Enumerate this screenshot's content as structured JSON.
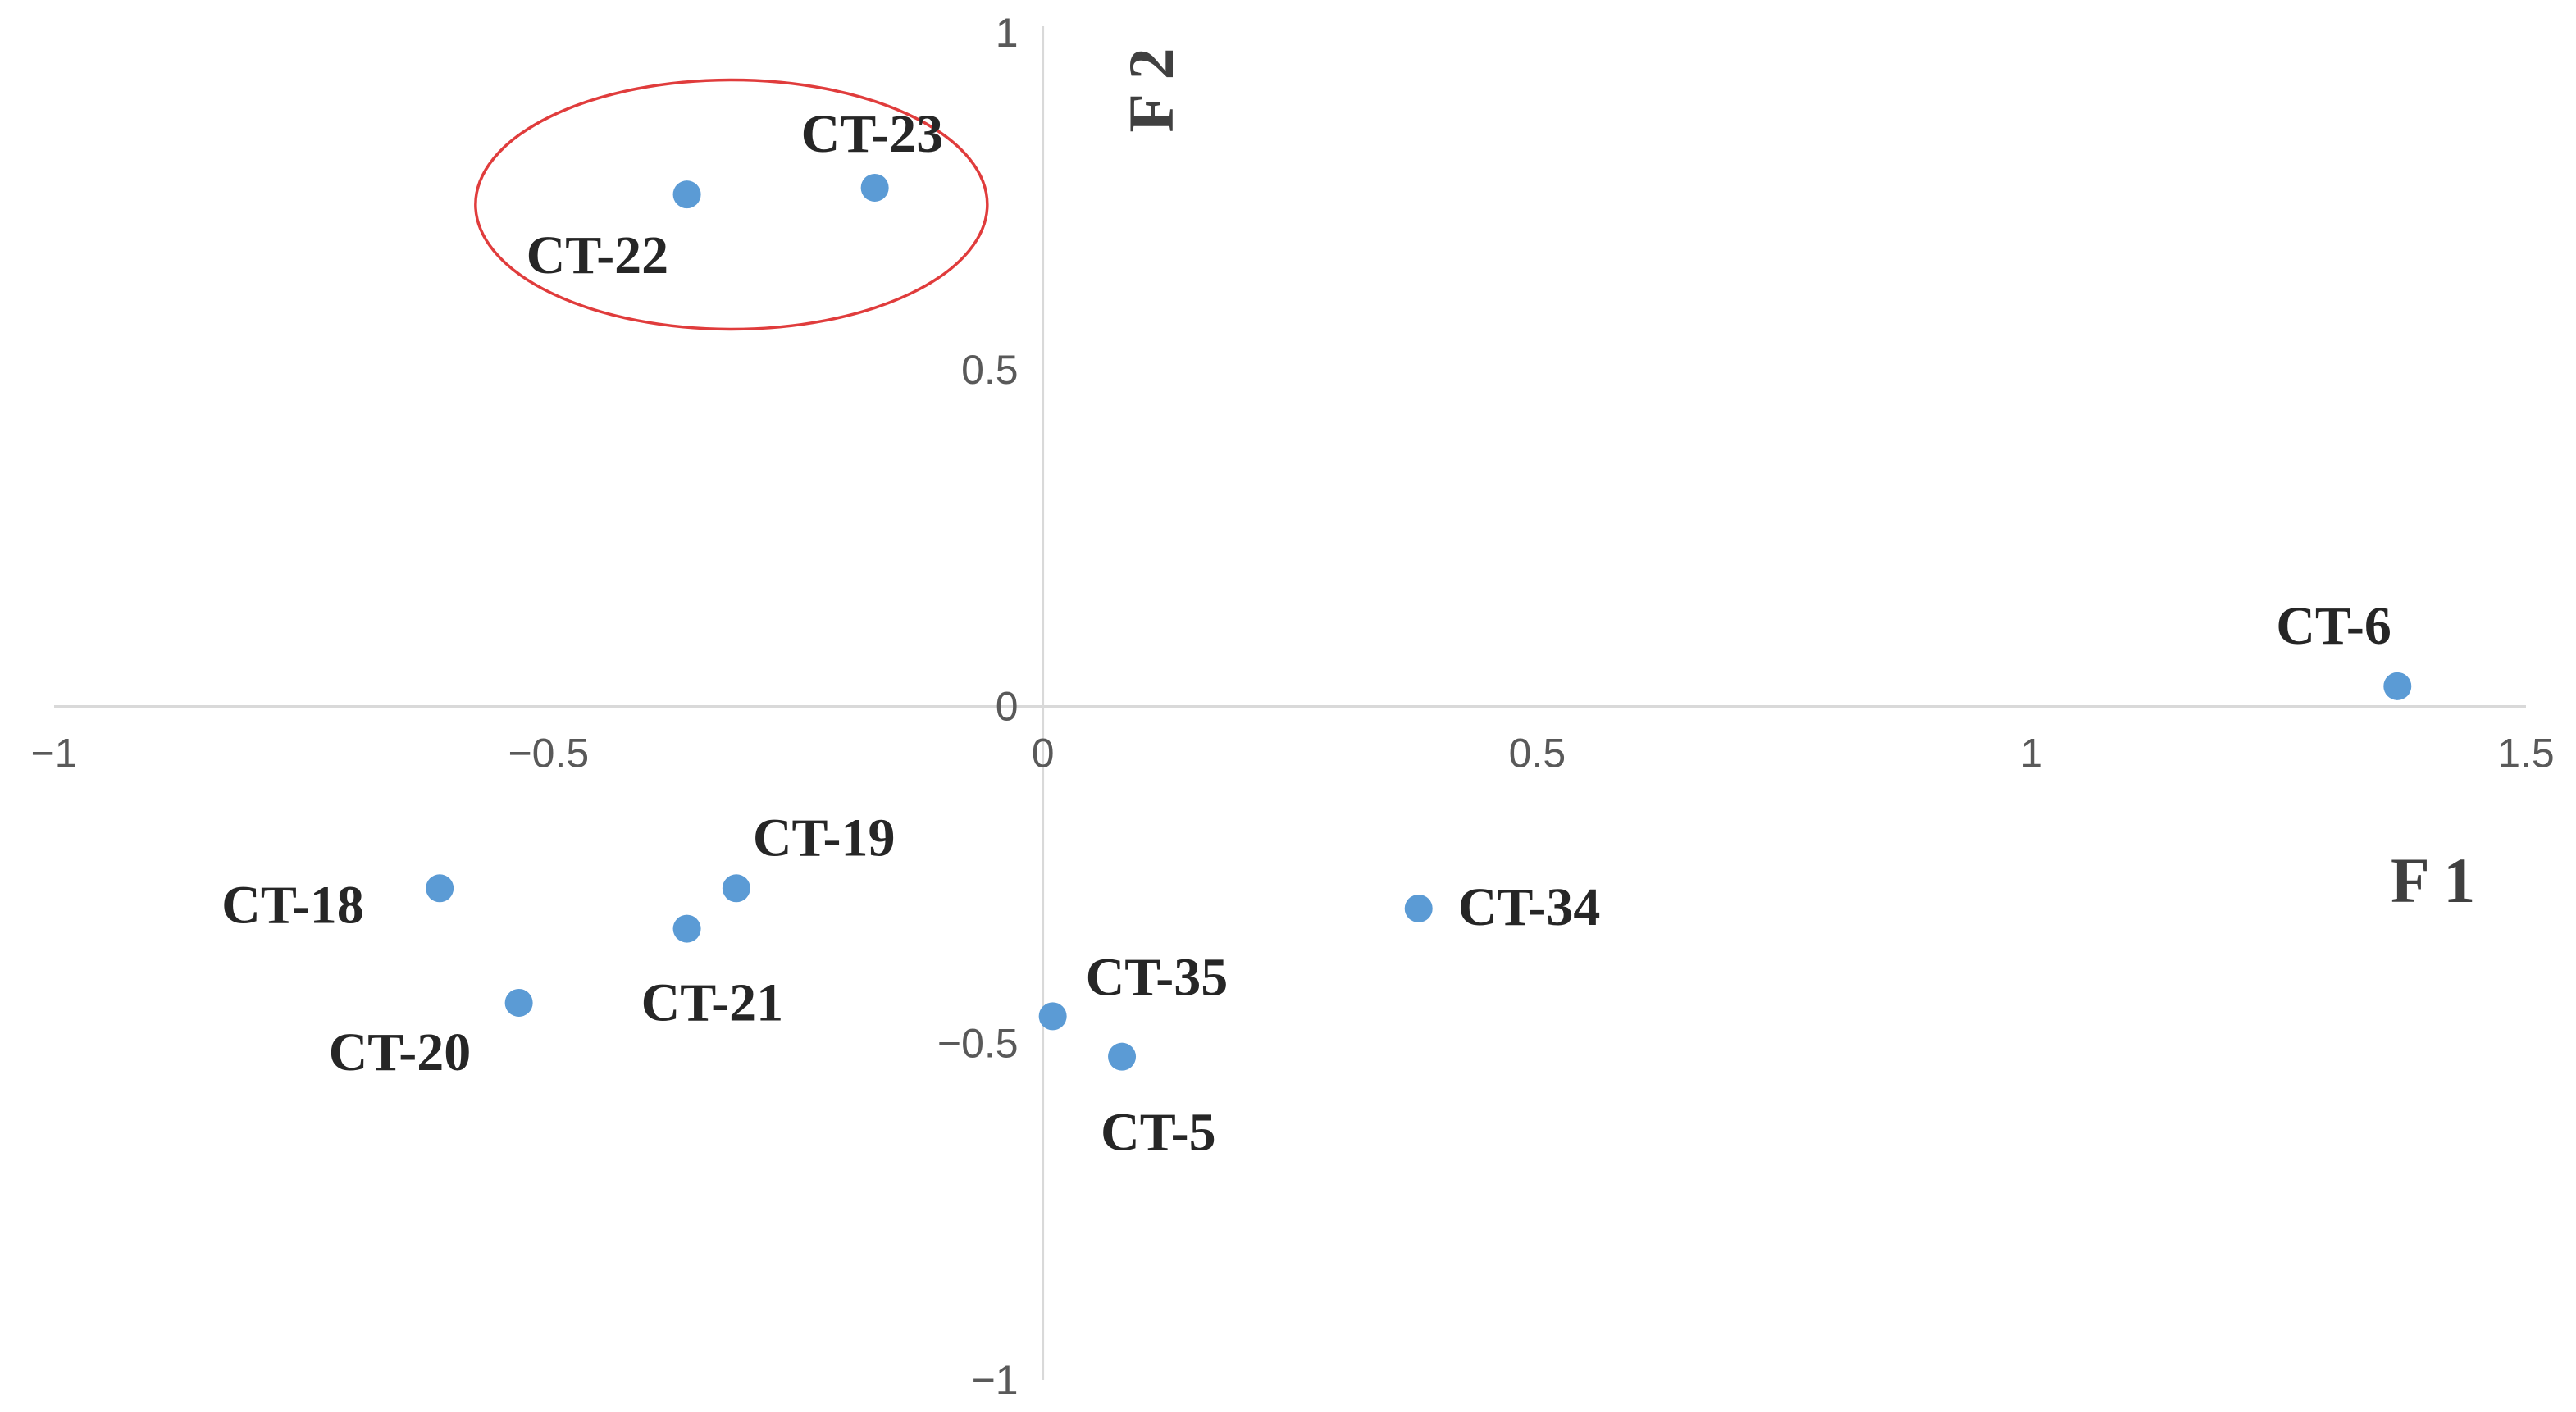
{
  "chart_data": {
    "type": "scatter",
    "title": "",
    "xlabel": "F 1",
    "ylabel": "F 2",
    "xlim": [
      -1,
      1.5
    ],
    "ylim": [
      -1,
      1
    ],
    "x_ticks": [
      "−1",
      "−0.5",
      "0",
      "0.5",
      "1",
      "1.5"
    ],
    "y_ticks": [
      "1",
      "0.5",
      "0",
      "−0.5",
      "−1"
    ],
    "grid": false,
    "legend": "none",
    "marker_color": "#5b9bd5",
    "axis_color": "#d9d9d9",
    "highlight_color": "#e03c3c",
    "points": [
      {
        "label": "CT-23",
        "x": -0.17,
        "y": 0.77
      },
      {
        "label": "CT-22",
        "x": -0.36,
        "y": 0.76
      },
      {
        "label": "CT-6",
        "x": 1.37,
        "y": 0.03
      },
      {
        "label": "CT-18",
        "x": -0.61,
        "y": -0.27
      },
      {
        "label": "CT-19",
        "x": -0.31,
        "y": -0.27
      },
      {
        "label": "CT-21",
        "x": -0.36,
        "y": -0.33
      },
      {
        "label": "CT-20",
        "x": -0.53,
        "y": -0.44
      },
      {
        "label": "CT-34",
        "x": 0.38,
        "y": -0.3
      },
      {
        "label": "CT-35",
        "x": 0.01,
        "y": -0.46
      },
      {
        "label": "CT-5",
        "x": 0.08,
        "y": -0.52
      }
    ],
    "annotations": [
      {
        "type": "ellipse",
        "encloses": [
          "CT-22",
          "CT-23"
        ]
      }
    ]
  }
}
